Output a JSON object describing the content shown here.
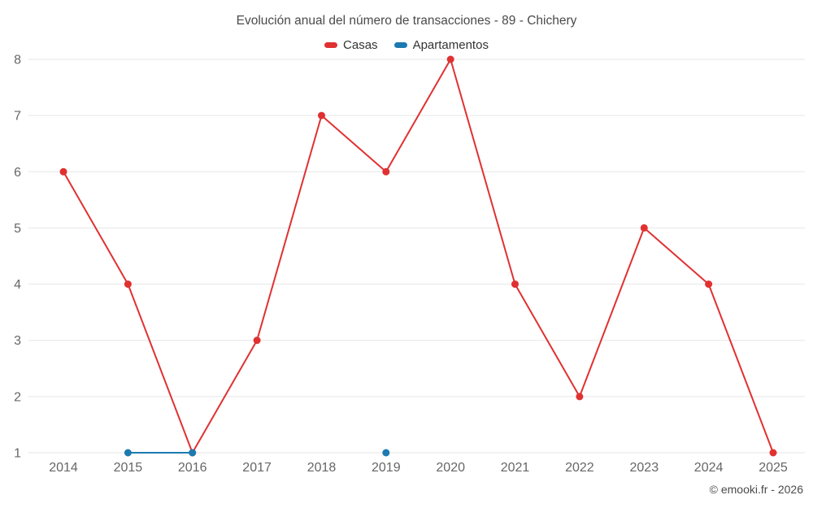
{
  "header": {
    "title": "Evolución anual del número de transacciones - 89 - Chichery"
  },
  "footer": {
    "credit": "© emooki.fr - 2026"
  },
  "colors": {
    "casas": "#e03131",
    "apartamentos": "#1c7ab0",
    "grid": "#e6e6e6",
    "axis_text": "#666666",
    "title_text": "#4a4a4a"
  },
  "chart_data": {
    "type": "line",
    "title": "Evolución anual del número de transacciones - 89 - Chichery",
    "categories": [
      "2014",
      "2015",
      "2016",
      "2017",
      "2018",
      "2019",
      "2020",
      "2021",
      "2022",
      "2023",
      "2024",
      "2025"
    ],
    "series": [
      {
        "name": "Casas",
        "color": "#e03131",
        "values": [
          6,
          4,
          1,
          3,
          7,
          6,
          8,
          4,
          2,
          5,
          4,
          1
        ]
      },
      {
        "name": "Apartamentos",
        "color": "#1c7ab0",
        "values": [
          null,
          1,
          1,
          null,
          null,
          1,
          null,
          null,
          null,
          null,
          null,
          null
        ]
      }
    ],
    "xlabel": "",
    "ylabel": "",
    "ylim": [
      1,
      8
    ],
    "yticks": [
      1,
      2,
      3,
      4,
      5,
      6,
      7,
      8
    ],
    "grid": "horizontal",
    "legend_position": "top"
  }
}
